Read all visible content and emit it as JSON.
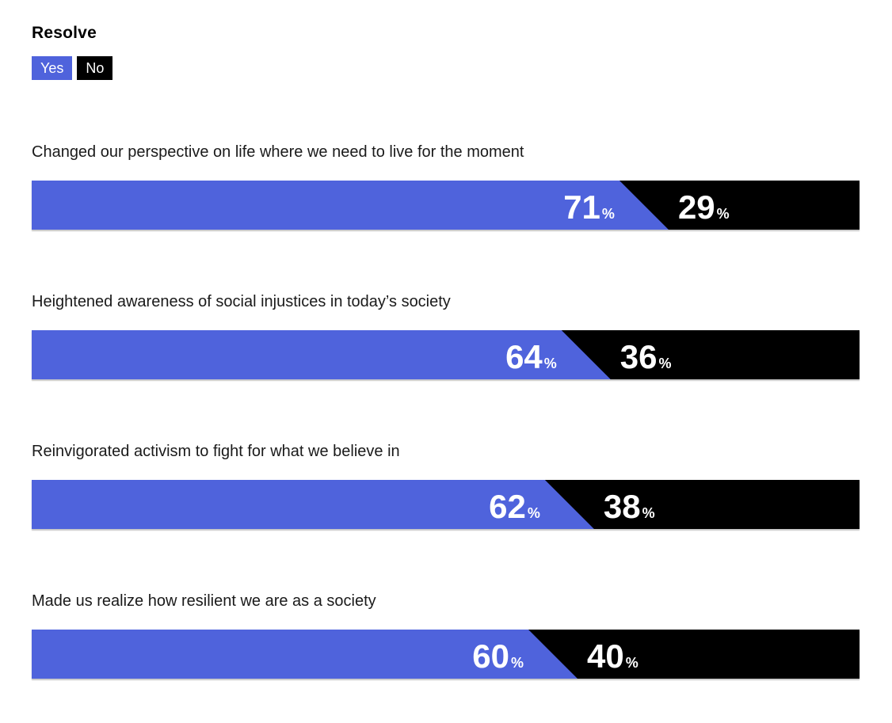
{
  "title": "Resolve",
  "legend": {
    "yes_label": "Yes",
    "no_label": "No"
  },
  "colors": {
    "yes": "#4f63dc",
    "no": "#000000",
    "value_text": "#ffffff",
    "label_text": "#1a1a1a",
    "page_bg": "#ffffff"
  },
  "chart_data": {
    "type": "bar",
    "subtype": "horizontal-stacked-diagonal-divider",
    "title": "Resolve",
    "legend": [
      "Yes",
      "No"
    ],
    "legend_position": "top-left",
    "categories": [
      "Changed our perspective on life where we need to live for the moment",
      "Heightened awareness of social injustices in today’s society",
      "Reinvigorated activism to fight for what we believe in",
      "Made us realize how resilient we are as a society"
    ],
    "series": [
      {
        "name": "Yes",
        "values": [
          71,
          64,
          62,
          60
        ]
      },
      {
        "name": "No",
        "values": [
          29,
          36,
          38,
          40
        ]
      }
    ],
    "value_suffix": "%",
    "xlim": [
      0,
      100
    ],
    "grid": false
  }
}
